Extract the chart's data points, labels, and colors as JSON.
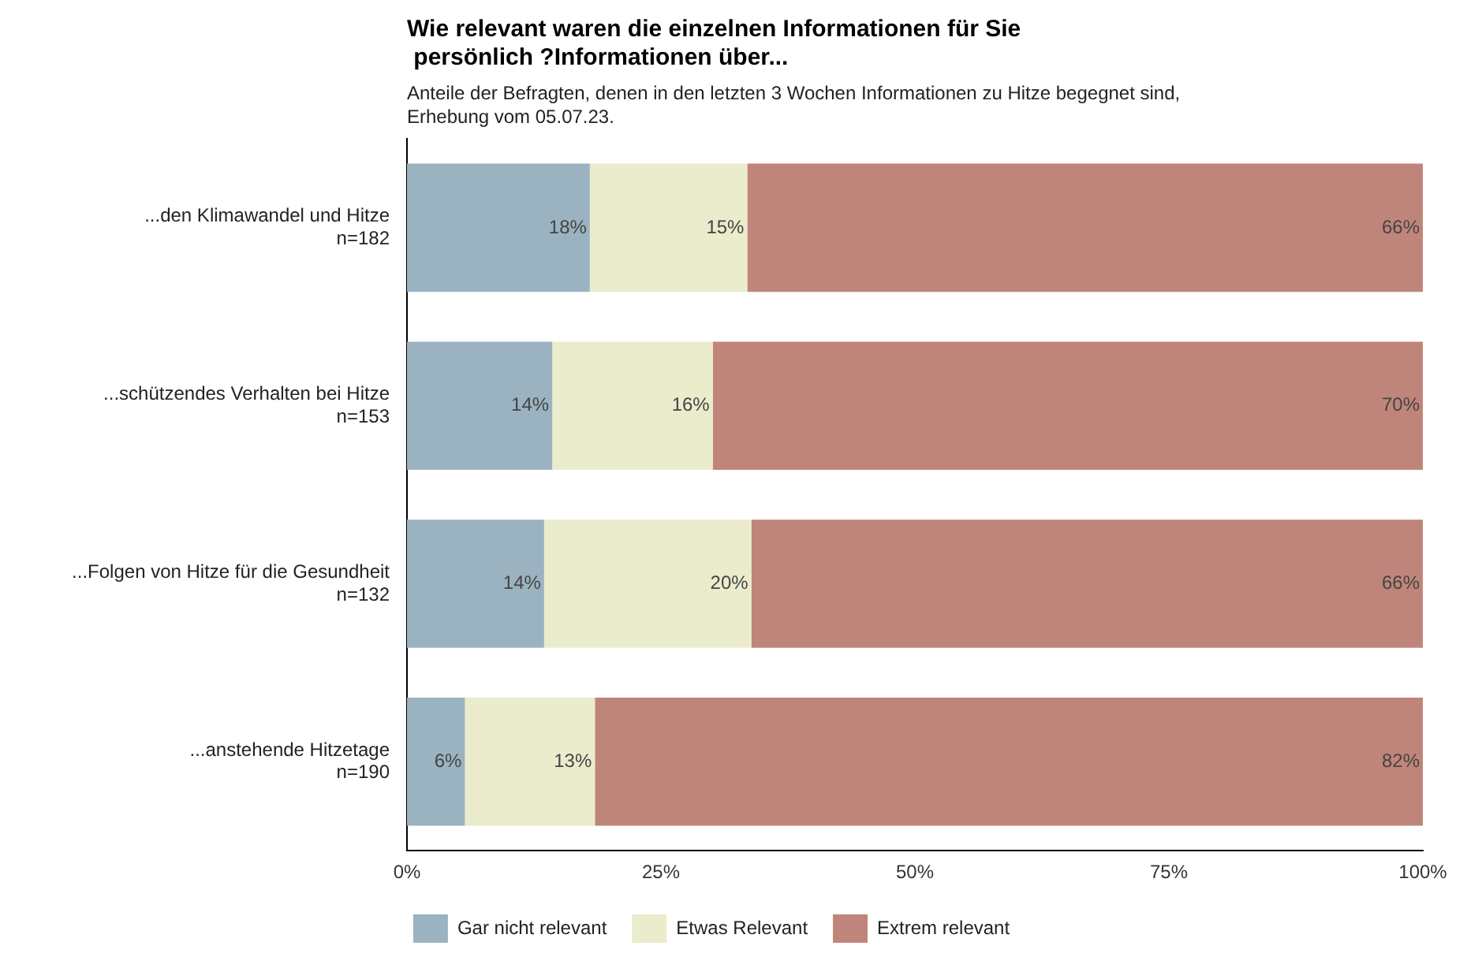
{
  "chart_data": {
    "type": "bar",
    "orientation": "horizontal",
    "stacked": true,
    "title": "Wie relevant waren die einzelnen Informationen für Sie\n persönlich ?Informationen über...",
    "subtitle": "Anteile der Befragten, denen in den letzten 3 Wochen Informationen zu Hitze begegnet sind,\nErhebung vom 05.07.23.",
    "categories": [
      "...den Klimawandel und Hitze\nn=182",
      "...schützendes Verhalten bei Hitze\nn=153",
      "...Folgen von Hitze für die Gesundheit\nn=132",
      "...anstehende Hitzetage\nn=190"
    ],
    "series": [
      {
        "name": "Gar nicht relevant",
        "color": "#9bb3c1",
        "values": [
          18.0,
          14.3,
          13.5,
          5.7
        ],
        "value_labels": [
          "18%",
          "14%",
          "14%",
          "6%"
        ]
      },
      {
        "name": "Etwas Relevant",
        "color": "#eaeccb",
        "values": [
          15.5,
          15.8,
          20.4,
          12.8
        ],
        "value_labels": [
          "15%",
          "16%",
          "20%",
          "13%"
        ]
      },
      {
        "name": "Extrem relevant",
        "color": "#c0857a",
        "values": [
          66.5,
          69.9,
          66.1,
          81.5
        ],
        "value_labels": [
          "66%",
          "70%",
          "66%",
          "82%"
        ]
      }
    ],
    "xlim": [
      0,
      100
    ],
    "xticks": [
      {
        "value": 0,
        "label": "0%"
      },
      {
        "value": 25,
        "label": "25%"
      },
      {
        "value": 50,
        "label": "50%"
      },
      {
        "value": 75,
        "label": "75%"
      },
      {
        "value": 100,
        "label": "100%"
      }
    ],
    "grid": false,
    "legend": "bottom"
  }
}
